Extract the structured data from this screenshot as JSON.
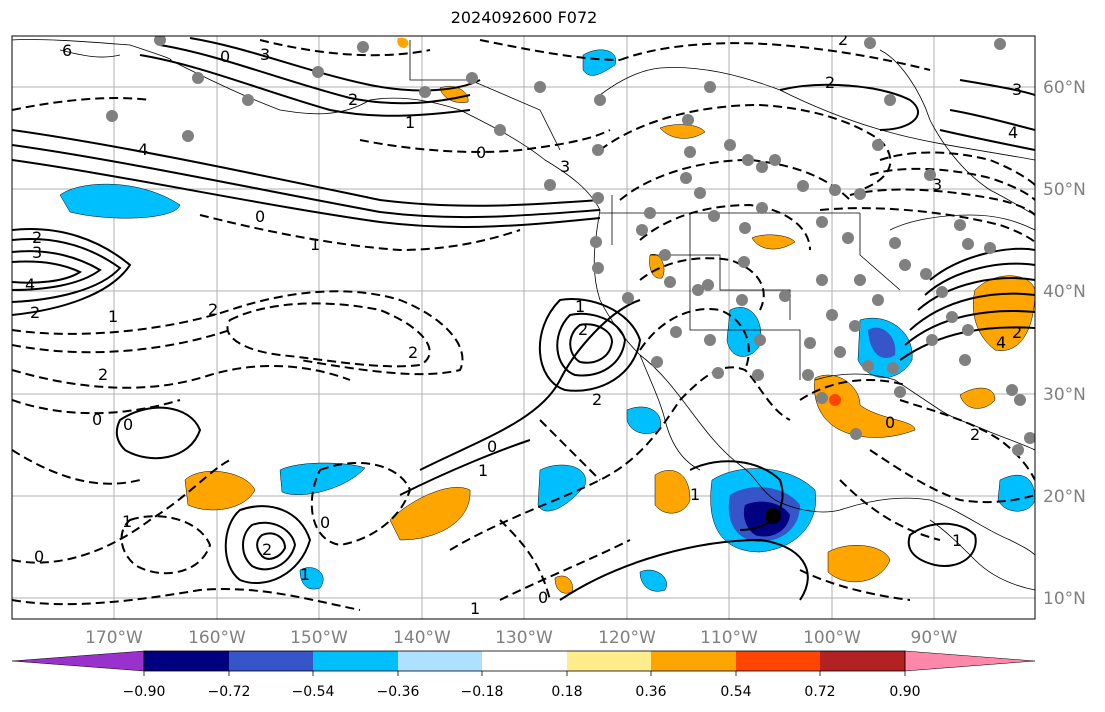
{
  "title": "2024092600 F072",
  "map": {
    "lat_labels": [
      "60°N",
      "50°N",
      "40°N",
      "30°N",
      "20°N",
      "10°N"
    ],
    "lon_labels": [
      "170°W",
      "160°W",
      "150°W",
      "140°W",
      "130°W",
      "120°W",
      "110°W",
      "100°W",
      "90°W"
    ],
    "contour_labels": [
      "6",
      "0",
      "3",
      "4",
      "2",
      "1",
      "0",
      "0",
      "1",
      "2",
      "4",
      "3",
      "2",
      "2",
      "1",
      "0",
      "2",
      "2",
      "2",
      "1",
      "0",
      "0",
      "1",
      "2",
      "1",
      "1",
      "2",
      "0",
      "0",
      "0",
      "1",
      "1",
      "2",
      "3",
      "2",
      "3",
      "4",
      "4",
      "3",
      "2",
      "1",
      "2",
      "0"
    ],
    "colors": {
      "land_line": "#000000",
      "grid": "#b0b0b0",
      "contour": "#000000"
    }
  },
  "colorbar": {
    "ticks": [
      "−0.90",
      "−0.72",
      "−0.54",
      "−0.36",
      "−0.18",
      "0.18",
      "0.36",
      "0.54",
      "0.72",
      "0.90"
    ],
    "colors": [
      "#9932cc",
      "#000080",
      "#3655c8",
      "#00bfff",
      "#aee0ff",
      "#ffffff",
      "#ffec8b",
      "#ffa500",
      "#ff4500",
      "#b22222",
      "#ff88aa"
    ]
  }
}
